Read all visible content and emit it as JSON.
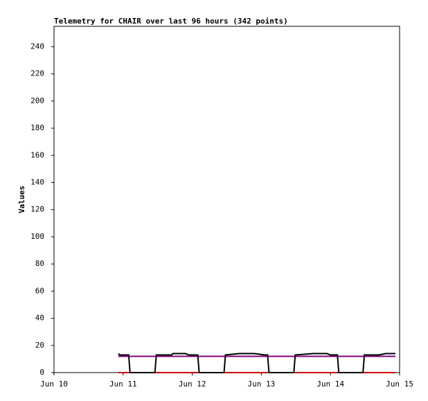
{
  "chart_data": {
    "type": "line",
    "title": "Telemetry for CHAIR over last 96 hours (342 points)",
    "y_label": "Values",
    "xlim": [
      10,
      15
    ],
    "xticks": [
      {
        "value": 10,
        "label": "Jun 10"
      },
      {
        "value": 11,
        "label": "Jun 11"
      },
      {
        "value": 12,
        "label": "Jun 12"
      },
      {
        "value": 13,
        "label": "Jun 13"
      },
      {
        "value": 14,
        "label": "Jun 14"
      },
      {
        "value": 15,
        "label": "Jun 15"
      }
    ],
    "ylim": [
      0,
      255
    ],
    "yticks": [
      0,
      20,
      40,
      60,
      80,
      100,
      120,
      140,
      160,
      180,
      200,
      220,
      240
    ],
    "series": [
      {
        "color": "#cc0000",
        "x": [
          10.93,
          14.94
        ],
        "values": [
          0,
          0
        ]
      },
      {
        "color": "#800080",
        "x": [
          10.93,
          14.94
        ],
        "values": [
          12,
          12
        ]
      },
      {
        "color": "#000000",
        "x": [
          10.93,
          10.95,
          11.08,
          11.1,
          11.46,
          11.48,
          11.7,
          11.72,
          11.9,
          11.95,
          12.08,
          12.1,
          12.46,
          12.48,
          12.68,
          12.9,
          13.05,
          13.09,
          13.11,
          13.47,
          13.49,
          13.75,
          13.95,
          14.0,
          14.1,
          14.12,
          14.47,
          14.49,
          14.7,
          14.8,
          14.94
        ],
        "values": [
          14,
          13,
          13,
          0,
          0,
          13,
          13,
          14,
          14,
          13,
          13,
          0,
          0,
          13,
          14,
          14,
          13,
          13,
          0,
          0,
          13,
          14,
          14,
          13,
          13,
          0,
          0,
          13,
          13,
          14,
          14
        ]
      }
    ]
  }
}
